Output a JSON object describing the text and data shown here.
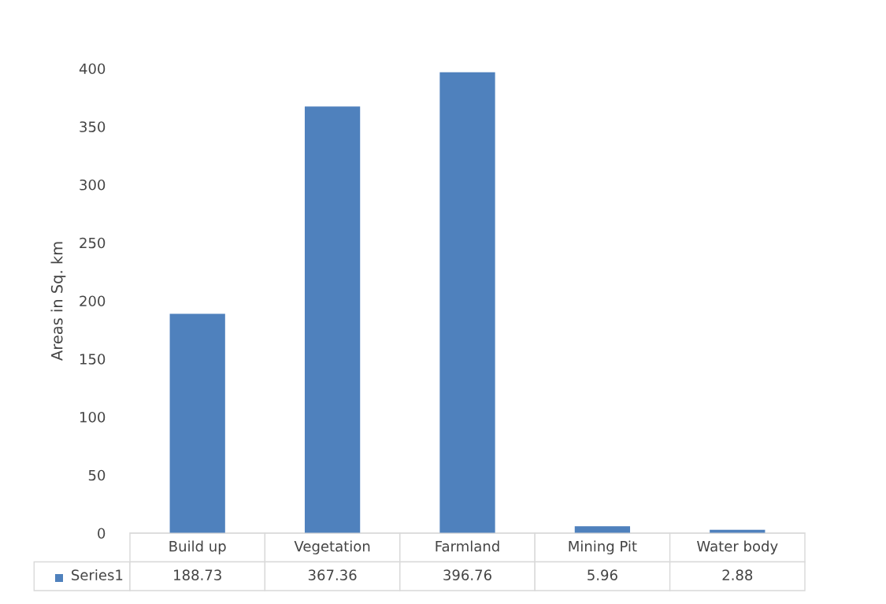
{
  "chart_data": {
    "type": "bar",
    "ylabel": "Areas in Sq. km",
    "categories": [
      "Build up",
      "Vegetation",
      "Farmland",
      "Mining Pit",
      "Water body"
    ],
    "series": [
      {
        "name": "Series1",
        "color": "#4f81bd",
        "values": [
          188.73,
          367.36,
          396.76,
          5.96,
          2.88
        ]
      }
    ],
    "ylim": [
      0,
      400
    ],
    "yticks": [
      0,
      50,
      100,
      150,
      200,
      250,
      300,
      350,
      400
    ],
    "grid": false,
    "data_labels": true,
    "legend": "bottom"
  }
}
